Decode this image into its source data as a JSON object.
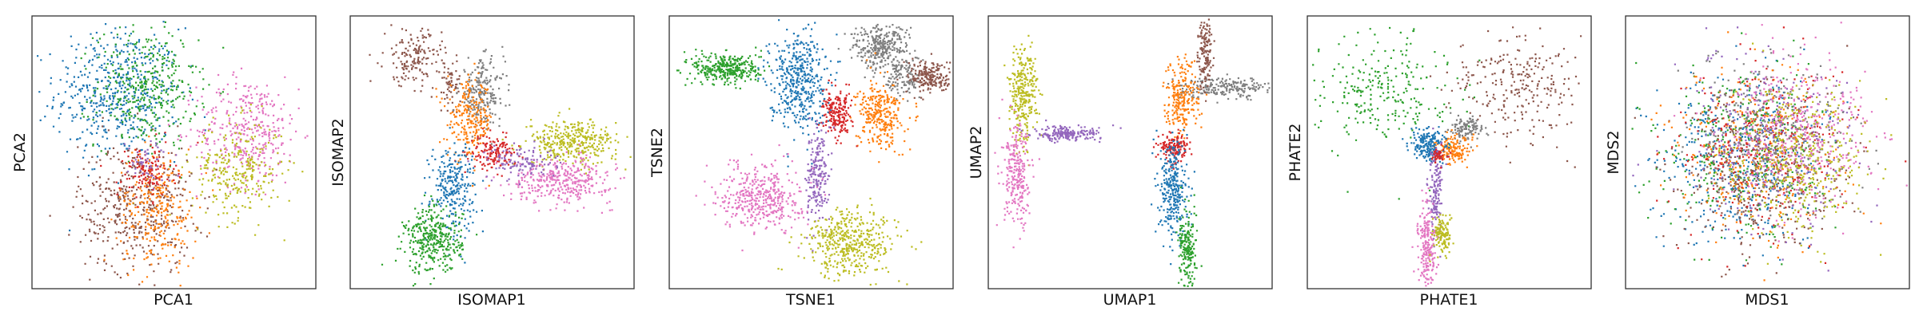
{
  "figure": {
    "description_note": "",
    "panel_count": 6
  },
  "legend": {
    "series_colors": [
      "#1f77b4",
      "#ff7f0e",
      "#2ca02c",
      "#d62728",
      "#9467bd",
      "#8c564b",
      "#e377c2",
      "#7f7f7f",
      "#bcbd22"
    ]
  },
  "chart_data": [
    {
      "type": "scatter",
      "title": "",
      "xlabel": "PCA1",
      "ylabel": "PCA2",
      "xlim": [
        0,
        100
      ],
      "ylim": [
        0,
        100
      ],
      "grid": false,
      "ticks": false,
      "series": [
        {
          "color": "#1f77b4",
          "clusters": [
            {
              "x": 30,
              "y": 72,
              "sx": 11,
              "sy": 12,
              "n": 520
            }
          ]
        },
        {
          "color": "#2ca02c",
          "clusters": [
            {
              "x": 40,
              "y": 74,
              "sx": 9,
              "sy": 11,
              "n": 380
            }
          ]
        },
        {
          "color": "#e377c2",
          "clusters": [
            {
              "x": 76,
              "y": 58,
              "sx": 9,
              "sy": 10,
              "n": 380
            }
          ]
        },
        {
          "color": "#bcbd22",
          "clusters": [
            {
              "x": 72,
              "y": 44,
              "sx": 8,
              "sy": 9,
              "n": 280
            }
          ]
        },
        {
          "color": "#8c564b",
          "clusters": [
            {
              "x": 36,
              "y": 30,
              "sx": 10,
              "sy": 12,
              "n": 420
            }
          ]
        },
        {
          "color": "#ff7f0e",
          "clusters": [
            {
              "x": 44,
              "y": 30,
              "sx": 7,
              "sy": 11,
              "n": 300
            }
          ]
        },
        {
          "color": "#d62728",
          "clusters": [
            {
              "x": 40,
              "y": 43,
              "sx": 5,
              "sy": 5,
              "n": 120
            }
          ]
        },
        {
          "color": "#9467bd",
          "clusters": [
            {
              "x": 41,
              "y": 47,
              "sx": 4,
              "sy": 4,
              "n": 50
            }
          ]
        }
      ]
    },
    {
      "type": "scatter",
      "title": "",
      "xlabel": "ISOMAP1",
      "ylabel": "ISOMAP2",
      "xlim": [
        0,
        100
      ],
      "ylim": [
        0,
        100
      ],
      "grid": false,
      "ticks": false,
      "series": [
        {
          "color": "#8c564b",
          "clusters": [
            {
              "x": 22,
              "y": 85,
              "sx": 5,
              "sy": 5,
              "n": 160
            },
            {
              "x": 35,
              "y": 75,
              "sx": 3,
              "sy": 5,
              "n": 60
            }
          ]
        },
        {
          "color": "#7f7f7f",
          "clusters": [
            {
              "x": 46,
              "y": 72,
              "sx": 4,
              "sy": 6,
              "n": 220
            }
          ]
        },
        {
          "color": "#ff7f0e",
          "clusters": [
            {
              "x": 42,
              "y": 62,
              "sx": 4,
              "sy": 7,
              "n": 240
            }
          ]
        },
        {
          "color": "#d62728",
          "clusters": [
            {
              "x": 50,
              "y": 50,
              "sx": 4,
              "sy": 3,
              "n": 150
            }
          ]
        },
        {
          "color": "#1f77b4",
          "clusters": [
            {
              "x": 36,
              "y": 38,
              "sx": 4,
              "sy": 8,
              "n": 260
            }
          ]
        },
        {
          "color": "#2ca02c",
          "clusters": [
            {
              "x": 29,
              "y": 18,
              "sx": 5,
              "sy": 6,
              "n": 360
            }
          ]
        },
        {
          "color": "#bcbd22",
          "clusters": [
            {
              "x": 78,
              "y": 54,
              "sx": 8,
              "sy": 4,
              "n": 360
            }
          ]
        },
        {
          "color": "#e377c2",
          "clusters": [
            {
              "x": 74,
              "y": 40,
              "sx": 9,
              "sy": 4,
              "n": 360
            }
          ]
        },
        {
          "color": "#9467bd",
          "clusters": [
            {
              "x": 60,
              "y": 47,
              "sx": 6,
              "sy": 3,
              "n": 120
            }
          ]
        }
      ]
    },
    {
      "type": "scatter",
      "title": "",
      "xlabel": "TSNE1",
      "ylabel": "TSNE2",
      "xlim": [
        0,
        100
      ],
      "ylim": [
        0,
        100
      ],
      "grid": false,
      "ticks": false,
      "series": [
        {
          "color": "#2ca02c",
          "clusters": [
            {
              "x": 20,
              "y": 81,
              "sx": 6,
              "sy": 3,
              "n": 340
            }
          ]
        },
        {
          "color": "#1f77b4",
          "clusters": [
            {
              "x": 45,
              "y": 77,
              "sx": 5,
              "sy": 9,
              "n": 450
            }
          ]
        },
        {
          "color": "#7f7f7f",
          "clusters": [
            {
              "x": 74,
              "y": 89,
              "sx": 5,
              "sy": 4,
              "n": 300
            },
            {
              "x": 82,
              "y": 78,
              "sx": 3,
              "sy": 4,
              "n": 120
            }
          ]
        },
        {
          "color": "#8c564b",
          "clusters": [
            {
              "x": 92,
              "y": 78,
              "sx": 4,
              "sy": 3,
              "n": 200
            }
          ]
        },
        {
          "color": "#ff7f0e",
          "clusters": [
            {
              "x": 74,
              "y": 64,
              "sx": 4,
              "sy": 6,
              "n": 300
            }
          ]
        },
        {
          "color": "#d62728",
          "clusters": [
            {
              "x": 59,
              "y": 64,
              "sx": 2.5,
              "sy": 4,
              "n": 200
            }
          ]
        },
        {
          "color": "#9467bd",
          "clusters": [
            {
              "x": 52,
              "y": 42,
              "sx": 2,
              "sy": 9,
              "n": 200
            }
          ]
        },
        {
          "color": "#e377c2",
          "clusters": [
            {
              "x": 32,
              "y": 34,
              "sx": 7,
              "sy": 6,
              "n": 420
            }
          ]
        },
        {
          "color": "#bcbd22",
          "clusters": [
            {
              "x": 64,
              "y": 17,
              "sx": 8,
              "sy": 6,
              "n": 450
            }
          ]
        }
      ]
    },
    {
      "type": "scatter",
      "title": "",
      "xlabel": "UMAP1",
      "ylabel": "UMAP2",
      "xlim": [
        0,
        100
      ],
      "ylim": [
        0,
        100
      ],
      "grid": false,
      "ticks": false,
      "series": [
        {
          "color": "#bcbd22",
          "clusters": [
            {
              "x": 12,
              "y": 72,
              "sx": 2.5,
              "sy": 9,
              "n": 300
            }
          ]
        },
        {
          "color": "#9467bd",
          "clusters": [
            {
              "x": 27,
              "y": 57,
              "sx": 6,
              "sy": 1.3,
              "n": 200
            }
          ]
        },
        {
          "color": "#e377c2",
          "clusters": [
            {
              "x": 10,
              "y": 41,
              "sx": 2.5,
              "sy": 9,
              "n": 260
            }
          ]
        },
        {
          "color": "#7f7f7f",
          "clusters": [
            {
              "x": 83,
              "y": 74,
              "sx": 8,
              "sy": 1.8,
              "n": 220
            }
          ]
        },
        {
          "color": "#8c564b",
          "clusters": [
            {
              "x": 76,
              "y": 88,
              "sx": 1.2,
              "sy": 7,
              "n": 150
            }
          ]
        },
        {
          "color": "#ff7f0e",
          "clusters": [
            {
              "x": 68,
              "y": 70,
              "sx": 3,
              "sy": 7,
              "n": 240
            }
          ]
        },
        {
          "color": "#d62728",
          "clusters": [
            {
              "x": 65,
              "y": 52,
              "sx": 2.5,
              "sy": 2.5,
              "n": 150
            }
          ]
        },
        {
          "color": "#1f77b4",
          "clusters": [
            {
              "x": 65,
              "y": 37,
              "sx": 2.5,
              "sy": 9,
              "n": 300
            }
          ]
        },
        {
          "color": "#2ca02c",
          "clusters": [
            {
              "x": 70,
              "y": 14,
              "sx": 1.6,
              "sy": 8,
              "n": 200
            }
          ]
        }
      ]
    },
    {
      "type": "scatter",
      "title": "",
      "xlabel": "PHATE1",
      "ylabel": "PHATE2",
      "xlim": [
        0,
        100
      ],
      "ylim": [
        0,
        100
      ],
      "grid": false,
      "ticks": false,
      "series": [
        {
          "color": "#2ca02c",
          "clusters": [
            {
              "x": 27,
              "y": 73,
              "sx": 12,
              "sy": 10,
              "n": 260
            }
          ]
        },
        {
          "color": "#8c564b",
          "clusters": [
            {
              "x": 75,
              "y": 75,
              "sx": 12,
              "sy": 10,
              "n": 260
            }
          ]
        },
        {
          "color": "#7f7f7f",
          "clusters": [
            {
              "x": 56,
              "y": 59,
              "sx": 3,
              "sy": 2,
              "n": 120
            }
          ]
        },
        {
          "color": "#ff7f0e",
          "clusters": [
            {
              "x": 51,
              "y": 51,
              "sx": 3,
              "sy": 2.5,
              "n": 150
            }
          ]
        },
        {
          "color": "#1f77b4",
          "clusters": [
            {
              "x": 42,
              "y": 53,
              "sx": 3,
              "sy": 3,
              "n": 200
            }
          ]
        },
        {
          "color": "#9467bd",
          "clusters": [
            {
              "x": 45,
              "y": 37,
              "sx": 1.3,
              "sy": 8,
              "n": 150
            }
          ]
        },
        {
          "color": "#e377c2",
          "clusters": [
            {
              "x": 42,
              "y": 15,
              "sx": 1.5,
              "sy": 8,
              "n": 220
            }
          ]
        },
        {
          "color": "#bcbd22",
          "clusters": [
            {
              "x": 47,
              "y": 20,
              "sx": 1.6,
              "sy": 3.5,
              "n": 120
            }
          ]
        },
        {
          "color": "#d62728",
          "clusters": [
            {
              "x": 46,
              "y": 49,
              "sx": 1.5,
              "sy": 1.5,
              "n": 40
            }
          ]
        }
      ]
    },
    {
      "type": "scatter",
      "title": "",
      "xlabel": "MDS1",
      "ylabel": "MDS2",
      "xlim": [
        0,
        100
      ],
      "ylim": [
        0,
        100
      ],
      "grid": false,
      "ticks": false,
      "series": [
        {
          "color": "#1f77b4",
          "clusters": [
            {
              "x": 40,
              "y": 48,
              "sx": 14,
              "sy": 15,
              "n": 420
            }
          ]
        },
        {
          "color": "#2ca02c",
          "clusters": [
            {
              "x": 42,
              "y": 50,
              "sx": 15,
              "sy": 16,
              "n": 360
            }
          ]
        },
        {
          "color": "#8c564b",
          "clusters": [
            {
              "x": 44,
              "y": 40,
              "sx": 16,
              "sy": 16,
              "n": 320
            }
          ]
        },
        {
          "color": "#ff7f0e",
          "clusters": [
            {
              "x": 46,
              "y": 48,
              "sx": 14,
              "sy": 16,
              "n": 320
            }
          ]
        },
        {
          "color": "#d62728",
          "clusters": [
            {
              "x": 48,
              "y": 52,
              "sx": 15,
              "sy": 16,
              "n": 300
            }
          ]
        },
        {
          "color": "#9467bd",
          "clusters": [
            {
              "x": 50,
              "y": 55,
              "sx": 16,
              "sy": 16,
              "n": 300
            }
          ]
        },
        {
          "color": "#7f7f7f",
          "clusters": [
            {
              "x": 52,
              "y": 56,
              "sx": 14,
              "sy": 14,
              "n": 280
            }
          ]
        },
        {
          "color": "#e377c2",
          "clusters": [
            {
              "x": 63,
              "y": 58,
              "sx": 13,
              "sy": 14,
              "n": 380
            }
          ]
        },
        {
          "color": "#bcbd22",
          "clusters": [
            {
              "x": 60,
              "y": 48,
              "sx": 12,
              "sy": 13,
              "n": 380
            }
          ]
        }
      ]
    }
  ]
}
